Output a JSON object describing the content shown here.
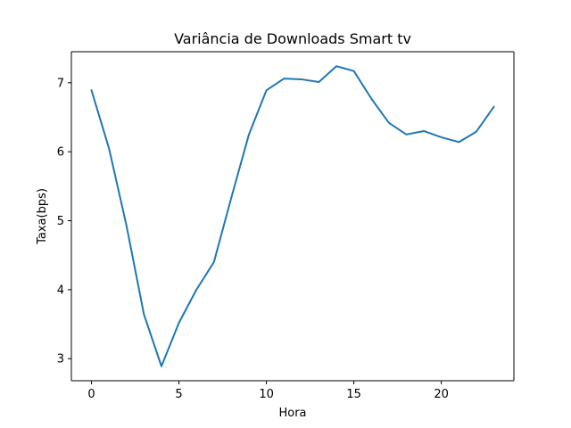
{
  "chart_data": {
    "type": "line",
    "title": "Variância de Downloads Smart tv",
    "xlabel": "Hora",
    "ylabel": "Taxa(bps)",
    "xlim": [
      -1.15,
      24.15
    ],
    "ylim": [
      2.68,
      7.45
    ],
    "xticks": [
      0,
      5,
      10,
      15,
      20
    ],
    "yticks": [
      3,
      4,
      5,
      6,
      7
    ],
    "grid": false,
    "series": [
      {
        "name": "Smart tv",
        "color": "#1f77b4",
        "x": [
          0,
          1,
          2,
          3,
          4,
          5,
          6,
          7,
          8,
          9,
          10,
          11,
          12,
          13,
          14,
          15,
          16,
          17,
          18,
          19,
          20,
          21,
          22,
          23
        ],
        "y": [
          6.89,
          6.05,
          4.93,
          3.64,
          2.89,
          3.52,
          4.0,
          4.4,
          5.34,
          6.25,
          6.89,
          7.06,
          7.05,
          7.01,
          7.24,
          7.17,
          6.77,
          6.42,
          6.25,
          6.3,
          6.21,
          6.14,
          6.29,
          6.65
        ]
      }
    ]
  }
}
